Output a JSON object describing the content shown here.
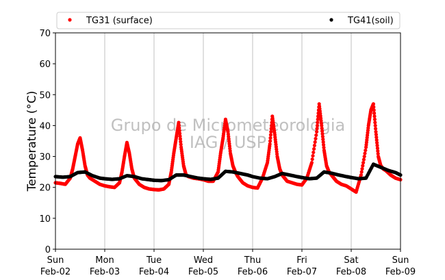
{
  "chart_data": {
    "type": "scatter",
    "ylabel": "Temperature (°C)",
    "ylim": [
      0,
      70
    ],
    "yticks": [
      0,
      10,
      20,
      30,
      40,
      50,
      60,
      70
    ],
    "xlim_days": [
      0,
      7
    ],
    "xticks": [
      {
        "day": 0,
        "line1": "Sun",
        "line2": "Feb-02"
      },
      {
        "day": 1,
        "line1": "Mon",
        "line2": "Feb-03"
      },
      {
        "day": 2,
        "line1": "Tue",
        "line2": "Feb-04"
      },
      {
        "day": 3,
        "line1": "Wed",
        "line2": "Feb-05"
      },
      {
        "day": 4,
        "line1": "Thu",
        "line2": "Feb-06"
      },
      {
        "day": 5,
        "line1": "Fri",
        "line2": "Feb-07"
      },
      {
        "day": 6,
        "line1": "Sat",
        "line2": "Feb-08"
      },
      {
        "day": 7,
        "line1": "Sun",
        "line2": "Feb-09"
      }
    ],
    "grid": "vertical",
    "legend_position": "top",
    "watermark": [
      "Grupo de Micrometeorologia",
      "IAG / USP"
    ],
    "series": [
      {
        "name": "TG31 (surface)",
        "color": "#ff0000",
        "marker": "dot",
        "x": [
          0.0,
          0.1,
          0.2,
          0.3,
          0.35,
          0.4,
          0.45,
          0.5,
          0.55,
          0.6,
          0.65,
          0.7,
          0.8,
          0.9,
          1.0,
          1.1,
          1.2,
          1.3,
          1.35,
          1.4,
          1.45,
          1.5,
          1.55,
          1.6,
          1.7,
          1.8,
          1.9,
          2.0,
          2.1,
          2.2,
          2.3,
          2.35,
          2.4,
          2.45,
          2.5,
          2.55,
          2.6,
          2.65,
          2.7,
          2.8,
          2.9,
          3.0,
          3.1,
          3.2,
          3.3,
          3.35,
          3.4,
          3.45,
          3.5,
          3.55,
          3.6,
          3.65,
          3.7,
          3.8,
          3.9,
          4.0,
          4.1,
          4.2,
          4.3,
          4.35,
          4.4,
          4.45,
          4.5,
          4.55,
          4.6,
          4.65,
          4.7,
          4.8,
          4.9,
          5.0,
          5.1,
          5.2,
          5.3,
          5.35,
          5.4,
          5.45,
          5.5,
          5.55,
          5.6,
          5.65,
          5.7,
          5.8,
          5.9,
          6.0,
          6.1,
          6.2,
          6.3,
          6.35,
          6.4,
          6.45,
          6.5,
          6.55,
          6.6,
          6.65,
          6.7,
          6.8,
          6.9,
          7.0
        ],
        "y": [
          21.5,
          21.3,
          21.0,
          23.0,
          26.0,
          30.0,
          34.0,
          36.0,
          32.0,
          27.0,
          24.0,
          23.0,
          22.0,
          21.0,
          20.5,
          20.2,
          20.0,
          21.5,
          25.0,
          30.0,
          34.5,
          31.0,
          26.0,
          23.0,
          21.0,
          20.0,
          19.5,
          19.3,
          19.2,
          19.5,
          21.0,
          25.0,
          31.0,
          36.0,
          41.0,
          33.0,
          27.0,
          24.0,
          23.5,
          23.0,
          22.8,
          22.5,
          22.0,
          22.0,
          25.0,
          31.0,
          36.0,
          42.0,
          38.0,
          31.0,
          27.0,
          25.0,
          23.5,
          21.5,
          20.5,
          20.0,
          19.8,
          23.0,
          28.0,
          34.0,
          43.0,
          37.0,
          30.0,
          26.0,
          24.0,
          23.0,
          22.0,
          21.5,
          21.0,
          20.8,
          23.0,
          28.0,
          38.0,
          47.0,
          40.0,
          32.0,
          27.0,
          25.0,
          24.0,
          23.0,
          22.0,
          21.0,
          20.5,
          19.5,
          18.5,
          24.0,
          33.0,
          40.0,
          45.0,
          47.0,
          38.0,
          30.0,
          27.0,
          26.0,
          25.5,
          24.0,
          23.0,
          22.5
        ]
      },
      {
        "name": "TG41(soil)",
        "color": "#000000",
        "marker": "dot",
        "x": [
          0.0,
          0.15,
          0.3,
          0.45,
          0.6,
          0.75,
          0.9,
          1.0,
          1.15,
          1.3,
          1.45,
          1.6,
          1.75,
          1.9,
          2.0,
          2.15,
          2.3,
          2.45,
          2.6,
          2.75,
          2.9,
          3.0,
          3.15,
          3.3,
          3.45,
          3.6,
          3.75,
          3.9,
          4.0,
          4.15,
          4.3,
          4.45,
          4.6,
          4.75,
          4.9,
          5.0,
          5.15,
          5.3,
          5.45,
          5.6,
          5.75,
          5.9,
          6.0,
          6.15,
          6.3,
          6.45,
          6.6,
          6.75,
          6.9,
          7.0
        ],
        "y": [
          23.5,
          23.3,
          23.5,
          24.8,
          25.0,
          23.8,
          23.0,
          22.8,
          22.6,
          22.8,
          23.8,
          23.5,
          22.8,
          22.5,
          22.3,
          22.2,
          22.5,
          24.0,
          24.0,
          23.5,
          23.0,
          22.8,
          22.6,
          23.0,
          25.2,
          25.0,
          24.5,
          24.0,
          23.5,
          23.0,
          22.8,
          23.5,
          24.5,
          24.0,
          23.5,
          23.2,
          22.8,
          23.0,
          25.0,
          24.6,
          24.0,
          23.5,
          23.2,
          22.8,
          23.0,
          27.5,
          26.5,
          25.5,
          24.8,
          24.0
        ]
      }
    ]
  }
}
